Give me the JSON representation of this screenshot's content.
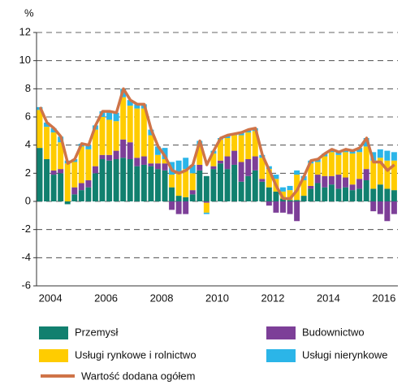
{
  "chart_data": {
    "type": "bar",
    "stacked": true,
    "y_label": "%",
    "categories": [
      "2004",
      null,
      null,
      null,
      null,
      null,
      null,
      null,
      "2006",
      null,
      null,
      null,
      null,
      null,
      null,
      null,
      "2008",
      null,
      null,
      null,
      null,
      null,
      null,
      null,
      "2010",
      null,
      null,
      null,
      null,
      null,
      null,
      null,
      "2012",
      null,
      null,
      null,
      null,
      null,
      null,
      null,
      "2014",
      null,
      null,
      null,
      null,
      null,
      null,
      null,
      "2016",
      null,
      null,
      null
    ],
    "series": [
      {
        "name": "Przemysł",
        "color": "#11806f",
        "values": [
          3.8,
          3.0,
          1.9,
          2.0,
          -0.2,
          0.5,
          0.8,
          1.0,
          2.0,
          3.0,
          2.9,
          3.0,
          3.1,
          3.0,
          2.5,
          2.6,
          2.5,
          2.3,
          2.2,
          1.0,
          0.4,
          0.3,
          0.5,
          2.2,
          1.8,
          2.3,
          2.7,
          2.3,
          2.6,
          1.4,
          1.8,
          2.2,
          1.4,
          1.0,
          0.7,
          0.2,
          0.1,
          0.1,
          0.4,
          0.9,
          1.3,
          1.0,
          1.2,
          0.9,
          1.0,
          0.8,
          0.9,
          1.5,
          0.9,
          1.2,
          0.9,
          0.8
        ]
      },
      {
        "name": "Budownictwo",
        "color": "#7d3f98",
        "values": [
          0.0,
          0.0,
          0.3,
          0.3,
          0.0,
          0.5,
          0.5,
          0.5,
          0.5,
          0.3,
          0.4,
          0.6,
          1.3,
          1.2,
          0.6,
          0.6,
          0.2,
          0.4,
          0.5,
          -0.6,
          -0.9,
          -0.9,
          0.3,
          0.4,
          -0.1,
          0.2,
          0.2,
          0.9,
          1.0,
          1.4,
          1.2,
          1.0,
          0.2,
          -0.3,
          -0.8,
          -0.8,
          -0.9,
          -1.4,
          0.0,
          0.2,
          0.6,
          0.8,
          0.6,
          1.0,
          0.7,
          0.4,
          0.7,
          0.8,
          -0.7,
          -0.9,
          -1.4,
          -0.9
        ]
      },
      {
        "name": "Usługi rynkowe i rolnictwo",
        "color": "#ffcc00",
        "values": [
          2.7,
          2.3,
          2.7,
          1.9,
          2.7,
          1.8,
          2.6,
          2.2,
          2.6,
          2.7,
          2.5,
          2.1,
          3.0,
          2.6,
          3.5,
          3.4,
          2.0,
          0.6,
          0.3,
          0.9,
          1.6,
          2.0,
          1.2,
          1.4,
          -0.7,
          0.9,
          1.5,
          1.3,
          1.1,
          1.9,
          1.9,
          1.8,
          1.5,
          1.3,
          0.9,
          0.5,
          0.7,
          1.8,
          1.1,
          1.6,
          0.9,
          1.4,
          1.7,
          1.4,
          1.8,
          2.2,
          1.9,
          1.6,
          2.0,
          1.9,
          2.0,
          2.1
        ]
      },
      {
        "name": "Usługi nierynkowe",
        "color": "#2bb5e8",
        "values": [
          0.2,
          0.3,
          0.3,
          0.4,
          0.2,
          0.2,
          0.2,
          0.3,
          0.3,
          0.4,
          0.6,
          0.6,
          0.6,
          0.4,
          0.3,
          0.3,
          0.4,
          0.6,
          0.8,
          0.9,
          0.9,
          0.8,
          0.6,
          0.3,
          -0.1,
          0.2,
          0.1,
          0.2,
          0.1,
          0.2,
          0.2,
          0.2,
          0.2,
          0.2,
          0.3,
          0.3,
          0.3,
          0.3,
          0.3,
          0.2,
          0.2,
          0.2,
          0.2,
          0.2,
          0.2,
          0.2,
          0.3,
          0.6,
          0.6,
          0.6,
          0.7,
          0.6
        ]
      }
    ],
    "line": {
      "name": "Wartość dodana ogółem",
      "color": "#cf7448",
      "values": [
        6.7,
        5.6,
        5.2,
        4.6,
        2.7,
        3.0,
        4.1,
        4.0,
        5.4,
        6.4,
        6.4,
        6.3,
        8.0,
        7.2,
        6.9,
        6.9,
        5.1,
        3.9,
        3.2,
        2.2,
        2.0,
        2.2,
        2.6,
        4.3,
        2.6,
        3.6,
        4.5,
        4.7,
        4.8,
        4.9,
        5.1,
        5.2,
        3.3,
        2.2,
        1.1,
        0.2,
        0.2,
        0.8,
        1.8,
        2.9,
        3.0,
        3.4,
        3.7,
        3.5,
        3.7,
        3.6,
        3.8,
        4.5,
        2.8,
        2.8,
        2.2,
        2.6
      ]
    },
    "ylim": [
      -6,
      12
    ],
    "yticks": [
      -6,
      -4,
      -2,
      0,
      2,
      4,
      6,
      8,
      10,
      12
    ],
    "grid": true
  }
}
